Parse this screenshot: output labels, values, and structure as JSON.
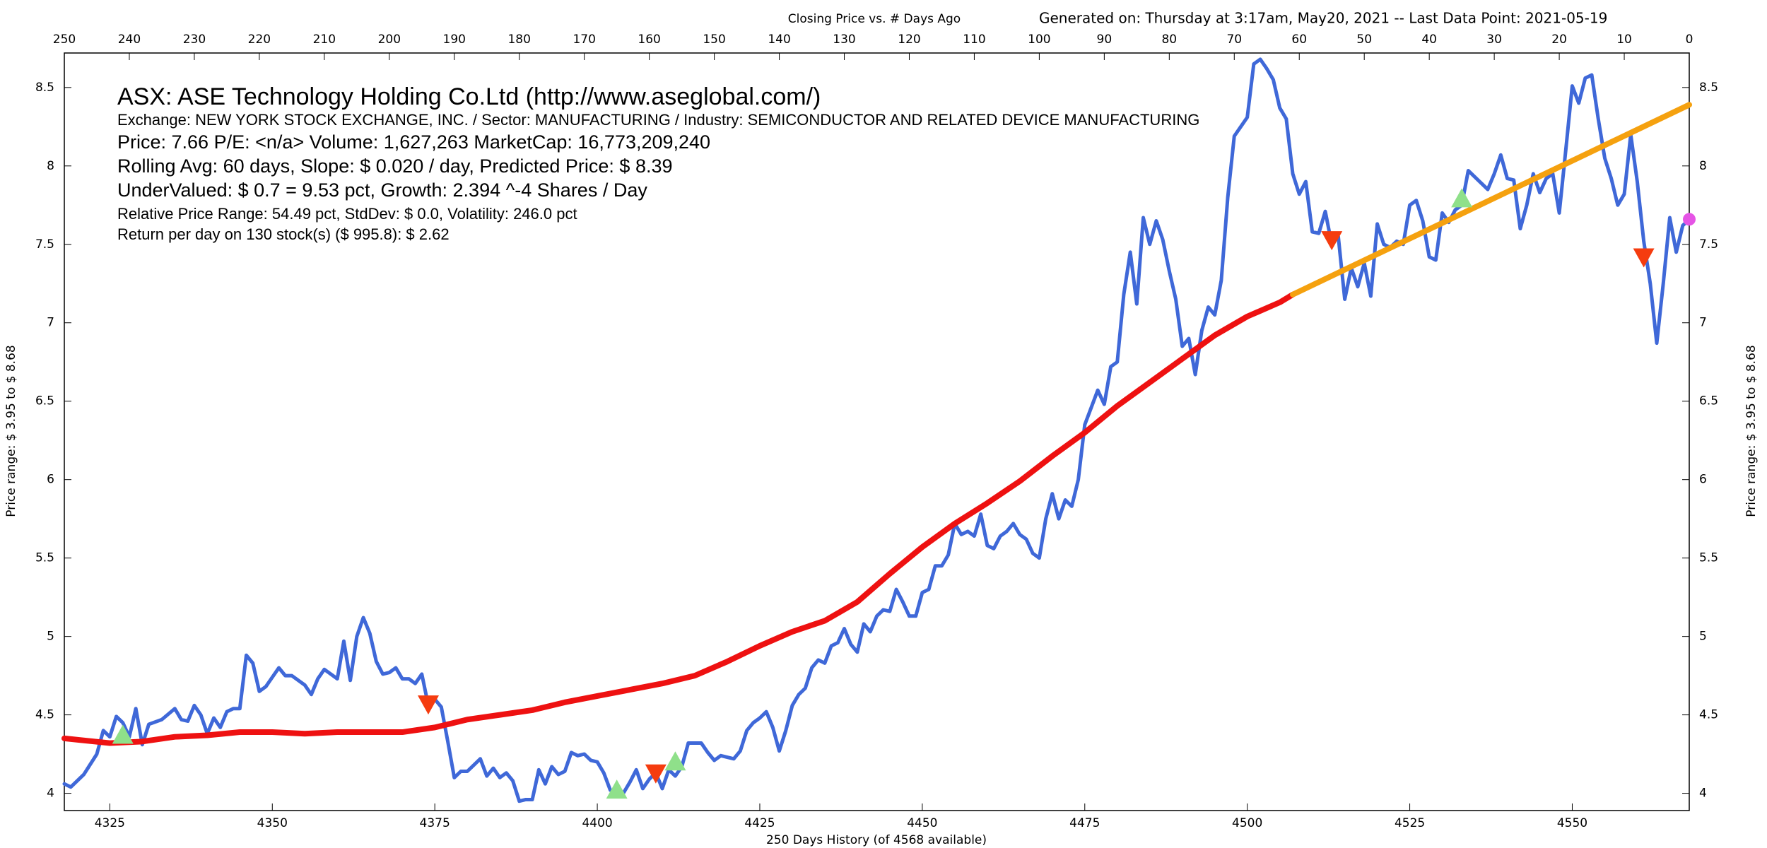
{
  "chart_data": {
    "type": "line",
    "title": "Closing Price vs. # Days Ago",
    "subtitle": "Generated on:  Thursday at  3:17am, May20, 2021  --  Last Data Point:  2021-05-19",
    "xlabel": "250 Days History (of 4568 available)",
    "ylabel": "Price range:  $ 3.95  to  $ 8.68",
    "info": [
      "ASX:  ASE Technology Holding Co.Ltd  (http://www.aseglobal.com/)",
      "Exchange: NEW YORK STOCK EXCHANGE, INC.  /  Sector: MANUFACTURING  /  Industry: SEMICONDUCTOR AND RELATED DEVICE MANUFACTURING",
      "Price: 7.66  P/E: <n/a> Volume: 1,627,263  MarketCap: 16,773,209,240",
      "Rolling Avg: 60 days, Slope: $ 0.020 / day, Predicted Price: $ 8.39",
      "UnderValued: $ 0.7 = 9.53 pct,  Growth: 2.394 ^-4 Shares / Day",
      "Relative Price Range: 54.49 pct, StdDev: $ 0.0, Volatility: 246.0 pct",
      "Return per day on 130 stock(s) ($ 995.8): $ 2.62"
    ],
    "xlim": [
      4318,
      4568
    ],
    "xticks": [
      4325,
      4350,
      4375,
      4400,
      4425,
      4450,
      4475,
      4500,
      4525,
      4550
    ],
    "x2lim": [
      250,
      0
    ],
    "x2ticks": [
      250,
      240,
      230,
      220,
      210,
      200,
      190,
      180,
      170,
      160,
      150,
      140,
      130,
      120,
      110,
      100,
      90,
      80,
      70,
      60,
      50,
      40,
      30,
      20,
      10,
      0
    ],
    "ylim": [
      3.89,
      8.72
    ],
    "yticks": [
      4,
      4.5,
      5,
      5.5,
      6,
      6.5,
      7,
      7.5,
      8,
      8.5
    ],
    "series": [
      {
        "color": "#3f68d8",
        "width": 5,
        "x": [
          4318,
          4319,
          4321,
          4323,
          4324,
          4325,
          4326,
          4327,
          4328,
          4329,
          4330,
          4331,
          4333,
          4335,
          4336,
          4337,
          4338,
          4339,
          4340,
          4341,
          4342,
          4343,
          4344,
          4345,
          4346,
          4347,
          4348,
          4349,
          4351,
          4352,
          4353,
          4355,
          4356,
          4357,
          4358,
          4360,
          4361,
          4362,
          4363,
          4364,
          4365,
          4366,
          4367,
          4368,
          4369,
          4370,
          4371,
          4372,
          4373,
          4374,
          4375,
          4376,
          4377,
          4378,
          4379,
          4380,
          4381,
          4382,
          4383,
          4384,
          4385,
          4386,
          4387,
          4388,
          4389,
          4390,
          4391,
          4392,
          4393,
          4394,
          4395,
          4396,
          4397,
          4398,
          4399,
          4400,
          4401,
          4402,
          4403,
          4404,
          4405,
          4406,
          4407,
          4408,
          4409,
          4410,
          4411,
          4412,
          4413,
          4414,
          4415,
          4416,
          4417,
          4418,
          4419,
          4420,
          4421,
          4422,
          4423,
          4424,
          4425,
          4426,
          4427,
          4428,
          4429,
          4430,
          4431,
          4432,
          4433,
          4434,
          4435,
          4436,
          4437,
          4438,
          4439,
          4440,
          4441,
          4442,
          4443,
          4444,
          4445,
          4446,
          4447,
          4448,
          4449,
          4450,
          4451,
          4452,
          4453,
          4454,
          4455,
          4456,
          4457,
          4458,
          4459,
          4460,
          4461,
          4462,
          4463,
          4464,
          4465,
          4466,
          4467,
          4468,
          4469,
          4470,
          4471,
          4472,
          4473,
          4474,
          4475,
          4476,
          4477,
          4478,
          4479,
          4480,
          4481,
          4482,
          4483,
          4484,
          4485,
          4486,
          4487,
          4488,
          4489,
          4490,
          4491,
          4492,
          4493,
          4494,
          4495,
          4496,
          4497,
          4498,
          4499,
          4500,
          4501,
          4502,
          4503,
          4504,
          4505,
          4506,
          4507,
          4508,
          4509,
          4510,
          4511,
          4512,
          4513,
          4514,
          4515,
          4516,
          4517,
          4518,
          4519,
          4520,
          4521,
          4522,
          4523,
          4524,
          4525,
          4526,
          4527,
          4528,
          4529,
          4530,
          4531,
          4532,
          4533,
          4534,
          4535,
          4536,
          4537,
          4538,
          4539,
          4540,
          4541,
          4542,
          4543,
          4544,
          4545,
          4546,
          4547,
          4548,
          4549,
          4550,
          4551,
          4552,
          4553,
          4554,
          4555,
          4556,
          4557,
          4558,
          4559,
          4560,
          4561,
          4562,
          4563,
          4564,
          4565,
          4566,
          4567,
          4568
        ],
        "values": [
          4.06,
          4.04,
          4.12,
          4.25,
          4.4,
          4.36,
          4.49,
          4.45,
          4.36,
          4.54,
          4.31,
          4.44,
          4.47,
          4.54,
          4.47,
          4.46,
          4.56,
          4.5,
          4.38,
          4.48,
          4.42,
          4.52,
          4.54,
          4.54,
          4.88,
          4.83,
          4.65,
          4.68,
          4.8,
          4.75,
          4.75,
          4.69,
          4.63,
          4.73,
          4.79,
          4.73,
          4.97,
          4.72,
          5.0,
          5.12,
          5.02,
          4.84,
          4.76,
          4.77,
          4.8,
          4.73,
          4.73,
          4.7,
          4.76,
          4.56,
          4.6,
          4.55,
          4.33,
          4.1,
          4.14,
          4.14,
          4.18,
          4.22,
          4.11,
          4.16,
          4.1,
          4.13,
          4.08,
          3.95,
          3.96,
          3.96,
          4.15,
          4.06,
          4.17,
          4.12,
          4.14,
          4.26,
          4.24,
          4.25,
          4.21,
          4.2,
          4.13,
          4.02,
          4.01,
          4.0,
          4.07,
          4.15,
          4.03,
          4.09,
          4.13,
          4.03,
          4.15,
          4.11,
          4.17,
          4.32,
          4.32,
          4.32,
          4.26,
          4.21,
          4.24,
          4.23,
          4.22,
          4.27,
          4.4,
          4.45,
          4.48,
          4.52,
          4.42,
          4.27,
          4.4,
          4.56,
          4.63,
          4.67,
          4.8,
          4.85,
          4.83,
          4.94,
          4.96,
          5.05,
          4.95,
          4.9,
          5.08,
          5.03,
          5.13,
          5.17,
          5.16,
          5.3,
          5.22,
          5.13,
          5.13,
          5.28,
          5.3,
          5.45,
          5.45,
          5.52,
          5.72,
          5.65,
          5.67,
          5.64,
          5.78,
          5.58,
          5.56,
          5.64,
          5.67,
          5.72,
          5.65,
          5.62,
          5.53,
          5.5,
          5.75,
          5.91,
          5.75,
          5.87,
          5.83,
          6.0,
          6.35,
          6.46,
          6.57,
          6.48,
          6.72,
          6.75,
          7.18,
          7.45,
          7.12,
          7.67,
          7.5,
          7.65,
          7.53,
          7.33,
          7.15,
          6.85,
          6.9,
          6.67,
          6.95,
          7.1,
          7.05,
          7.27,
          7.8,
          8.19,
          8.25,
          8.31,
          8.65,
          8.68,
          8.62,
          8.55,
          8.37,
          8.3,
          7.95,
          7.82,
          7.9,
          7.58,
          7.57,
          7.71,
          7.5,
          7.55,
          7.15,
          7.35,
          7.23,
          7.38,
          7.17,
          7.63,
          7.5,
          7.48,
          7.52,
          7.5,
          7.75,
          7.78,
          7.65,
          7.42,
          7.4,
          7.7,
          7.64,
          7.72,
          7.75,
          7.97,
          7.93,
          7.89,
          7.85,
          7.95,
          8.07,
          7.92,
          7.91,
          7.6,
          7.75,
          7.95,
          7.83,
          7.92,
          7.95,
          7.7,
          8.1,
          8.51,
          8.4,
          8.56,
          8.58,
          8.3,
          8.05,
          7.92,
          7.75,
          7.82,
          8.2,
          7.9,
          7.52,
          7.25,
          6.87,
          7.25,
          7.67,
          7.45,
          7.62,
          7.66
        ]
      },
      {
        "color": "#ee1111",
        "width": 8,
        "x": [
          4318,
          4325,
          4330,
          4335,
          4340,
          4345,
          4350,
          4355,
          4360,
          4365,
          4370,
          4375,
          4380,
          4385,
          4390,
          4395,
          4400,
          4405,
          4410,
          4415,
          4420,
          4425,
          4430,
          4435,
          4440,
          4445,
          4450,
          4455,
          4460,
          4465,
          4470,
          4475,
          4480,
          4485,
          4490,
          4495,
          4500,
          4505,
          4507
        ],
        "values": [
          4.35,
          4.32,
          4.33,
          4.36,
          4.37,
          4.39,
          4.39,
          4.38,
          4.39,
          4.39,
          4.39,
          4.42,
          4.47,
          4.5,
          4.53,
          4.58,
          4.62,
          4.66,
          4.7,
          4.75,
          4.84,
          4.94,
          5.03,
          5.1,
          5.22,
          5.4,
          5.57,
          5.72,
          5.85,
          5.99,
          6.15,
          6.3,
          6.47,
          6.62,
          6.77,
          6.92,
          7.04,
          7.13,
          7.18
        ]
      },
      {
        "color": "#f5a10f",
        "width": 8,
        "x": [
          4507,
          4568
        ],
        "values": [
          7.18,
          8.39
        ]
      }
    ],
    "markers": [
      {
        "shape": "up",
        "color": "#8fe08a",
        "x": [
          4327,
          4403,
          4412,
          4533
        ],
        "values": [
          4.37,
          4.02,
          4.2,
          7.79
        ]
      },
      {
        "shape": "down",
        "color": "#f53c0f",
        "x": [
          4374,
          4409,
          4513,
          4561
        ],
        "values": [
          4.57,
          4.13,
          7.53,
          7.42
        ]
      },
      {
        "shape": "dot",
        "color": "#e554e5",
        "x": [
          4568
        ],
        "values": [
          7.66
        ]
      }
    ]
  }
}
